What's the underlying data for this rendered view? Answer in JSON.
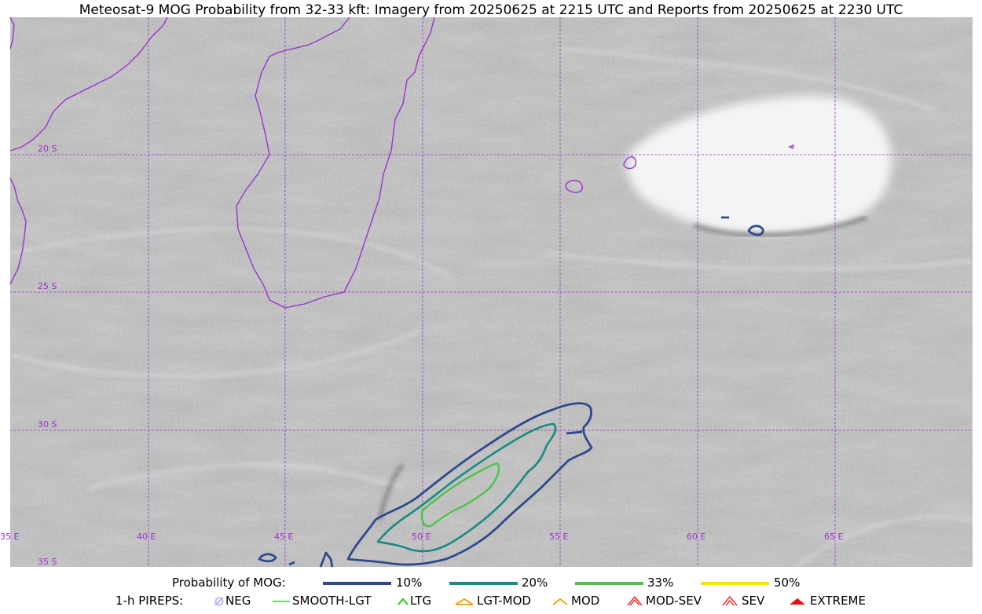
{
  "title": "Meteosat-9 MOG Probability from 32-33 kft: Imagery from 20250625 at 2215 UTC and Reports from 20250625 at 2230 UTC",
  "map": {
    "lat_labels": [
      "20 S",
      "25 S",
      "30 S",
      "35 S"
    ],
    "lon_labels": [
      "35 E",
      "40 E",
      "45 E",
      "50 E",
      "55 E",
      "60 E",
      "65 E"
    ],
    "grid_color": "#9a33cc",
    "coast_color": "#9a33cc"
  },
  "legend_prob": {
    "heading": "Probability of MOG:",
    "items": [
      {
        "label": "10%",
        "color": "#2e4a8c"
      },
      {
        "label": "20%",
        "color": "#178a82"
      },
      {
        "label": "33%",
        "color": "#4cc24c"
      },
      {
        "label": "50%",
        "color": "#f5e11a"
      }
    ]
  },
  "legend_pireps": {
    "heading": "1-h PIREPS:",
    "items": [
      {
        "label": "NEG",
        "icon": "neg-icon",
        "color": "#b8b8f0"
      },
      {
        "label": "SMOOTH-LGT",
        "icon": "smooth-lgt-icon",
        "color": "#3ccc3c"
      },
      {
        "label": "LTG",
        "icon": "ltg-icon",
        "color": "#22cc22"
      },
      {
        "label": "LGT-MOD",
        "icon": "lgt-mod-icon",
        "color": "#f0a000"
      },
      {
        "label": "MOD",
        "icon": "mod-icon",
        "color": "#f0a000"
      },
      {
        "label": "MOD-SEV",
        "icon": "mod-sev-icon",
        "color": "#e83030"
      },
      {
        "label": "SEV",
        "icon": "sev-icon",
        "color": "#e83030"
      },
      {
        "label": "EXTREME",
        "icon": "extreme-icon",
        "color": "#e81010"
      }
    ]
  }
}
